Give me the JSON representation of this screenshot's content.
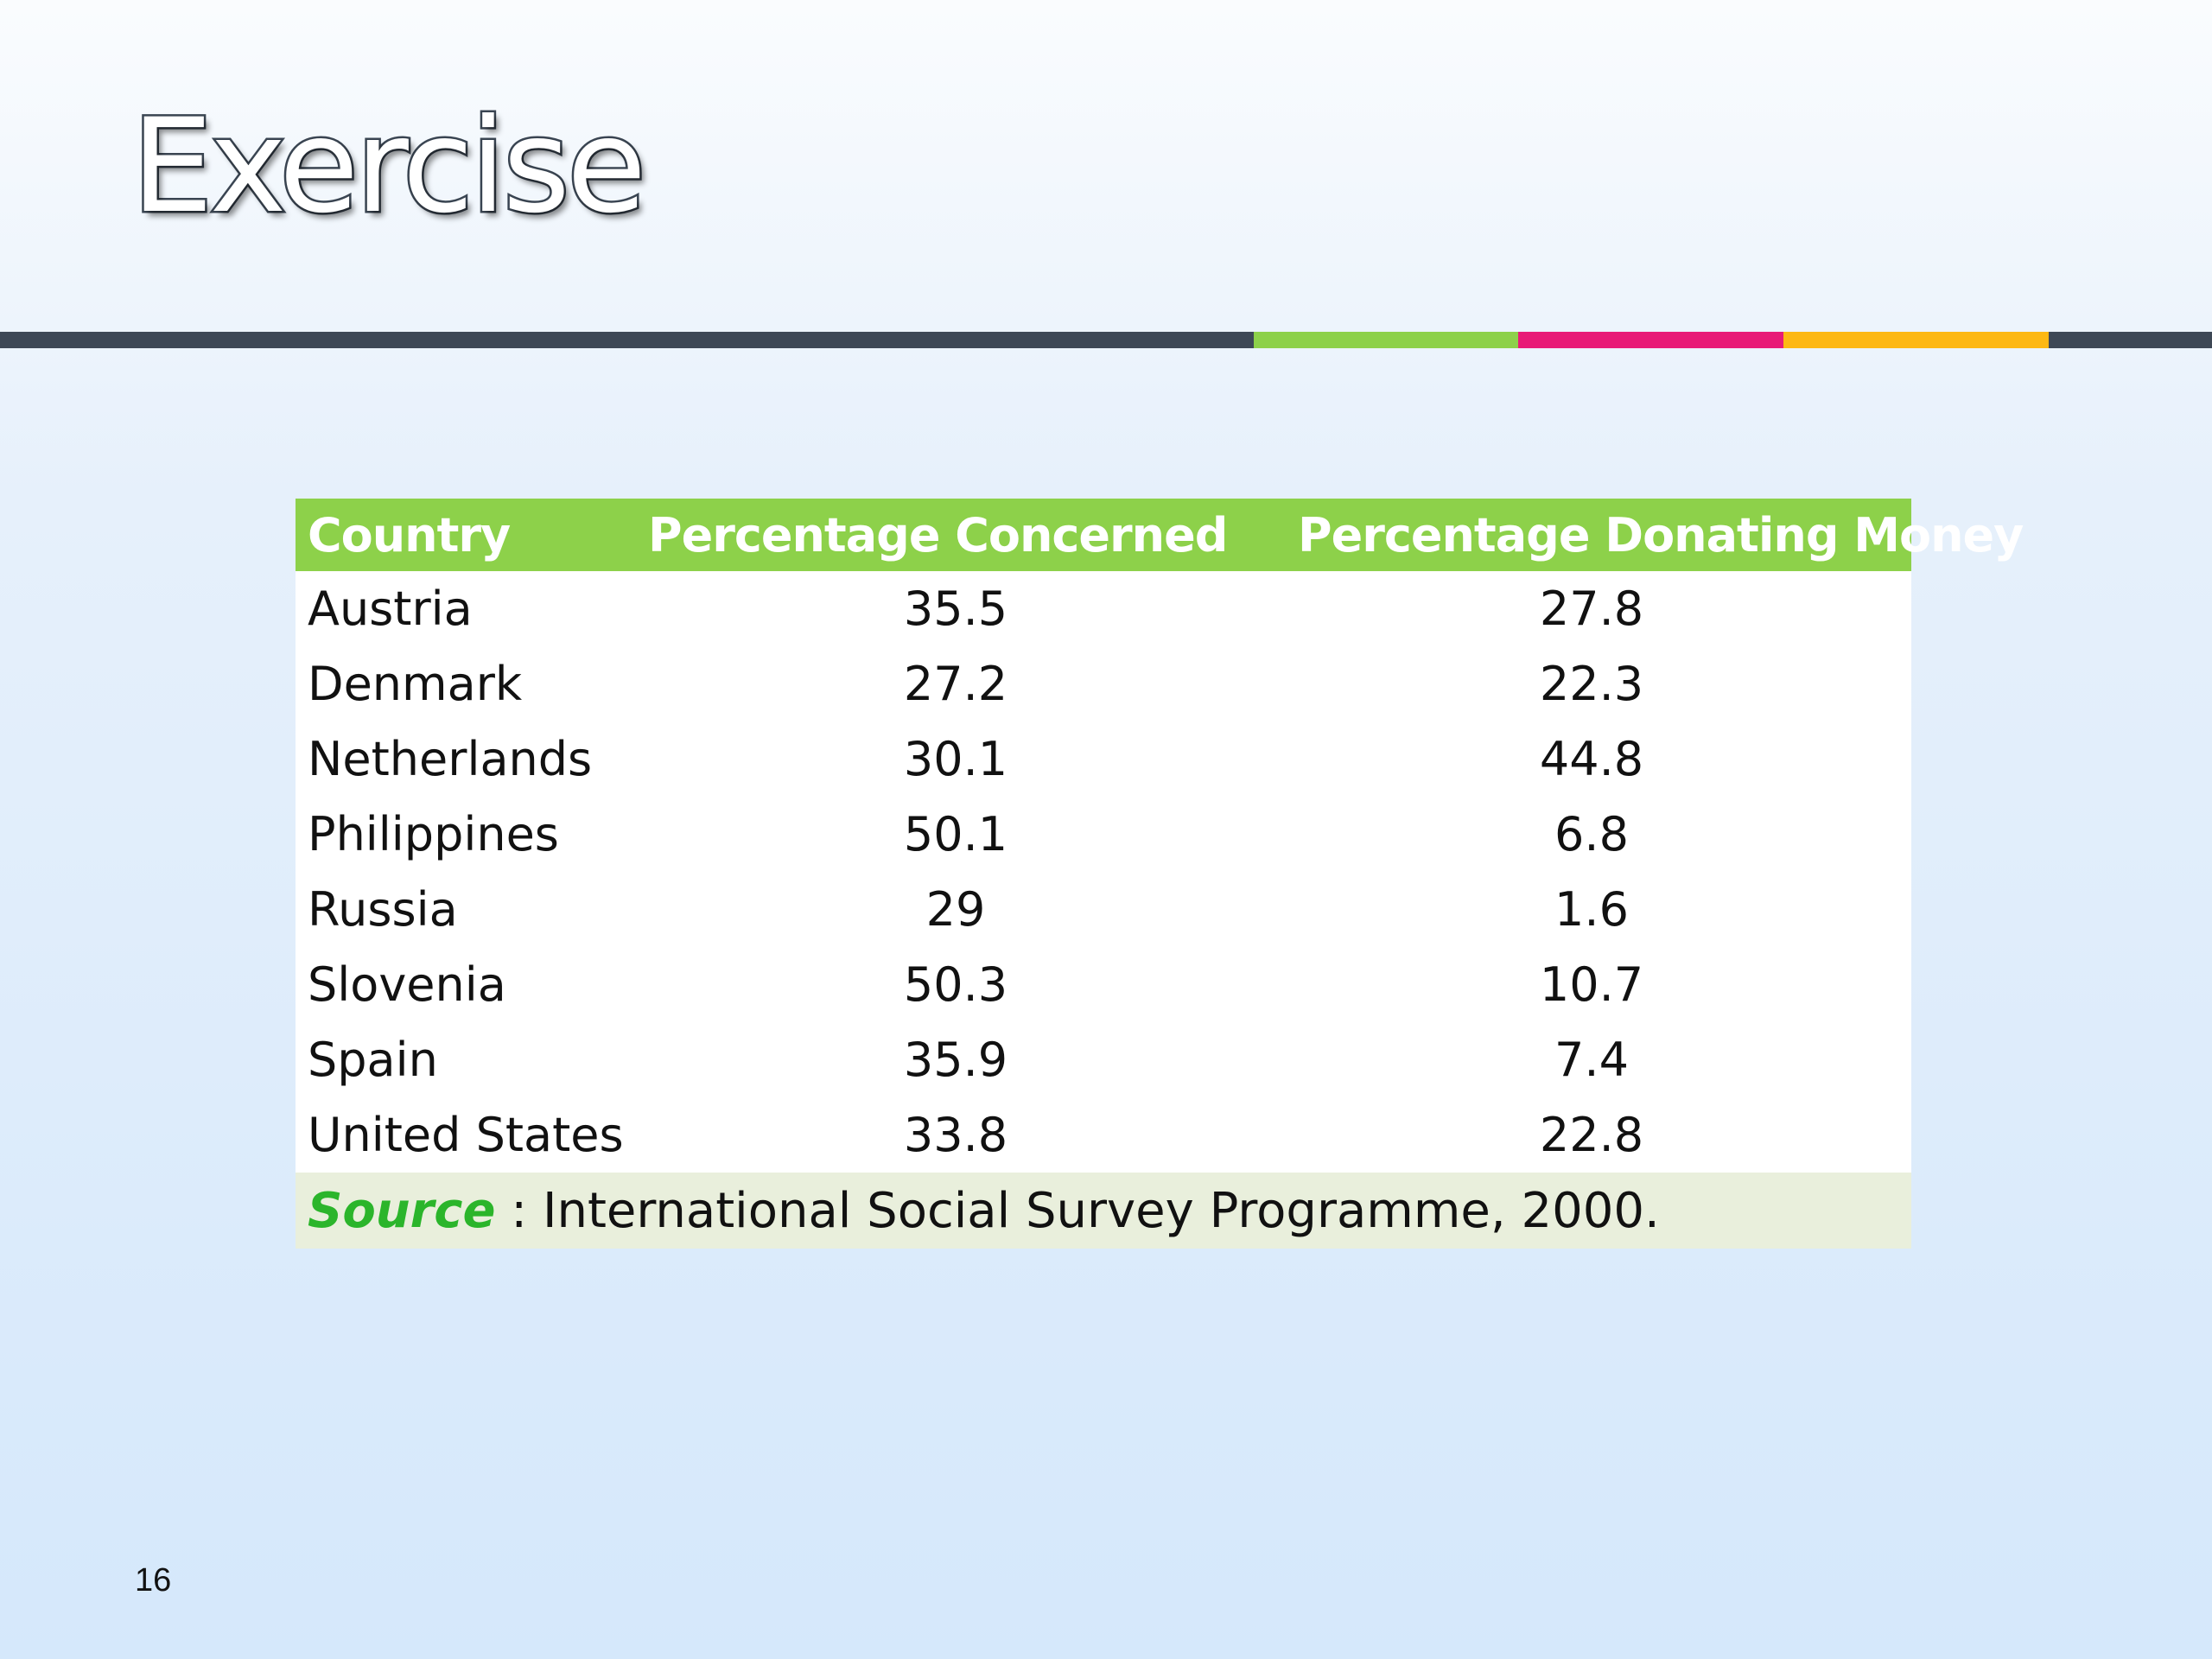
{
  "slide": {
    "title": "Exercise",
    "page_number": "16"
  },
  "accent_colors": {
    "bar_dark": "#3e4856",
    "green": "#8dd14a",
    "pink": "#e81b77",
    "orange": "#fdb813"
  },
  "table": {
    "headers": [
      "Country",
      "Percentage Concerned",
      "Percentage Donating Money"
    ],
    "rows": [
      {
        "country": "Austria",
        "concerned": "35.5",
        "donating": "27.8"
      },
      {
        "country": "Denmark",
        "concerned": "27.2",
        "donating": "22.3"
      },
      {
        "country": "Netherlands",
        "concerned": "30.1",
        "donating": "44.8"
      },
      {
        "country": "Philippines",
        "concerned": "50.1",
        "donating": "6.8"
      },
      {
        "country": "Russia",
        "concerned": "29",
        "donating": "1.6"
      },
      {
        "country": "Slovenia",
        "concerned": "50.3",
        "donating": "10.7"
      },
      {
        "country": "Spain",
        "concerned": "35.9",
        "donating": "7.4"
      },
      {
        "country": "United States",
        "concerned": "33.8",
        "donating": "22.8"
      }
    ],
    "source_label": "Source",
    "source_text": " : International Social Survey Programme, 2000."
  }
}
